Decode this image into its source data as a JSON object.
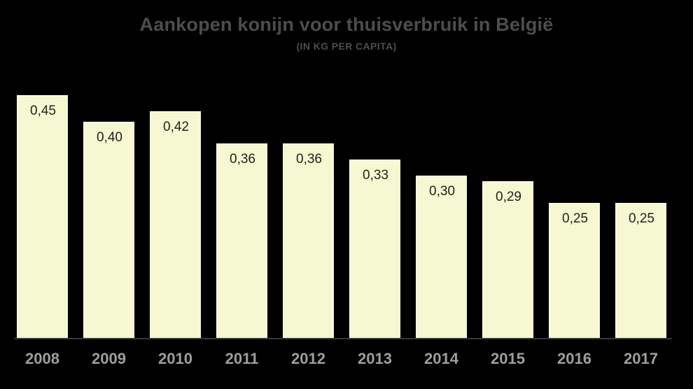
{
  "title": "Aankopen konijn voor thuisverbruik in België",
  "subtitle": "(IN KG PER CAPITA)",
  "colors": {
    "background": "#000000",
    "bar_fill": "#f5f8d0",
    "bar_highlight": "#fdfeea",
    "bar_value_label": "#212121",
    "title_text": "#4d4d4d",
    "axis_label_text": "#9e9e9e",
    "axis_line": "#383838"
  },
  "chart_data": {
    "type": "bar",
    "title": "Aankopen konijn voor thuisverbruik in België",
    "subtitle": "(IN KG PER CAPITA)",
    "categories": [
      "2008",
      "2009",
      "2010",
      "2011",
      "2012",
      "2013",
      "2014",
      "2015",
      "2016",
      "2017"
    ],
    "values": [
      0.45,
      0.4,
      0.42,
      0.36,
      0.36,
      0.33,
      0.3,
      0.29,
      0.25,
      0.25
    ],
    "value_labels": [
      "0,45",
      "0,40",
      "0,42",
      "0,36",
      "0,36",
      "0,33",
      "0,30",
      "0,29",
      "0,25",
      "0,25"
    ],
    "xlabel": "",
    "ylabel": "",
    "ylim": [
      0,
      0.5
    ],
    "grid": false,
    "legend": null,
    "value_labels_position": "inside-top",
    "background": "dark"
  }
}
